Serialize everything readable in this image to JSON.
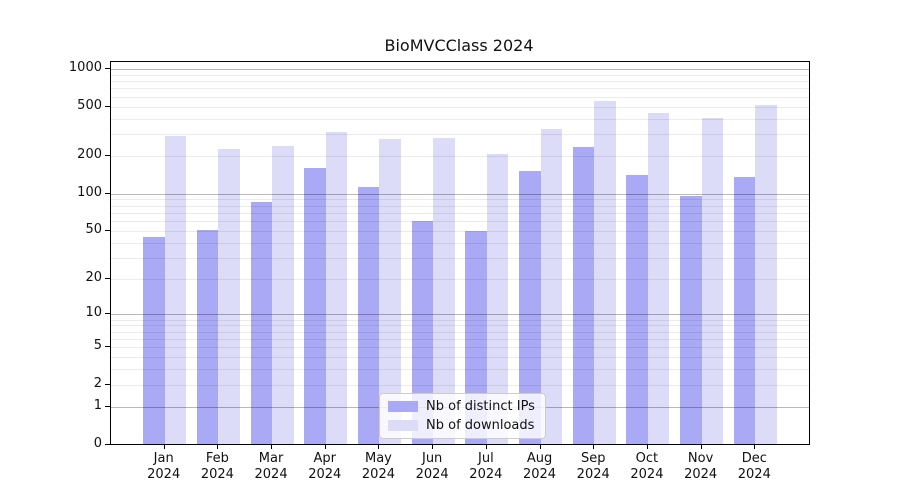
{
  "chart_data": {
    "type": "bar",
    "title": "BioMVCClass 2024",
    "categories": [
      "Jan",
      "Feb",
      "Mar",
      "Apr",
      "May",
      "Jun",
      "Jul",
      "Aug",
      "Sep",
      "Oct",
      "Nov",
      "Dec"
    ],
    "category_year": "2024",
    "series": [
      {
        "name": "Nb of distinct IPs",
        "color": "#a9a9f6",
        "values": [
          45,
          51,
          86,
          162,
          114,
          60,
          50,
          152,
          238,
          141,
          96,
          136
        ]
      },
      {
        "name": "Nb of downloads",
        "color": "#dcdcf8",
        "values": [
          293,
          229,
          242,
          315,
          274,
          282,
          210,
          330,
          555,
          447,
          405,
          512
        ]
      }
    ],
    "y_axis": {
      "scale": "log1p",
      "tick_labels": [
        "0",
        "1",
        "2",
        "5",
        "10",
        "20",
        "50",
        "100",
        "200",
        "500",
        "1000"
      ],
      "tick_values": [
        0,
        1,
        2,
        5,
        10,
        20,
        50,
        100,
        200,
        500,
        1000
      ],
      "major_grid_values": [
        1,
        10,
        100,
        1000
      ],
      "minor_grid_values": [
        2,
        3,
        4,
        5,
        6,
        7,
        8,
        9,
        20,
        30,
        40,
        50,
        60,
        70,
        80,
        90,
        200,
        300,
        400,
        500,
        600,
        700,
        800,
        900
      ],
      "range": [
        0,
        1140
      ]
    },
    "legend_position": "lower center",
    "grid": "on"
  }
}
